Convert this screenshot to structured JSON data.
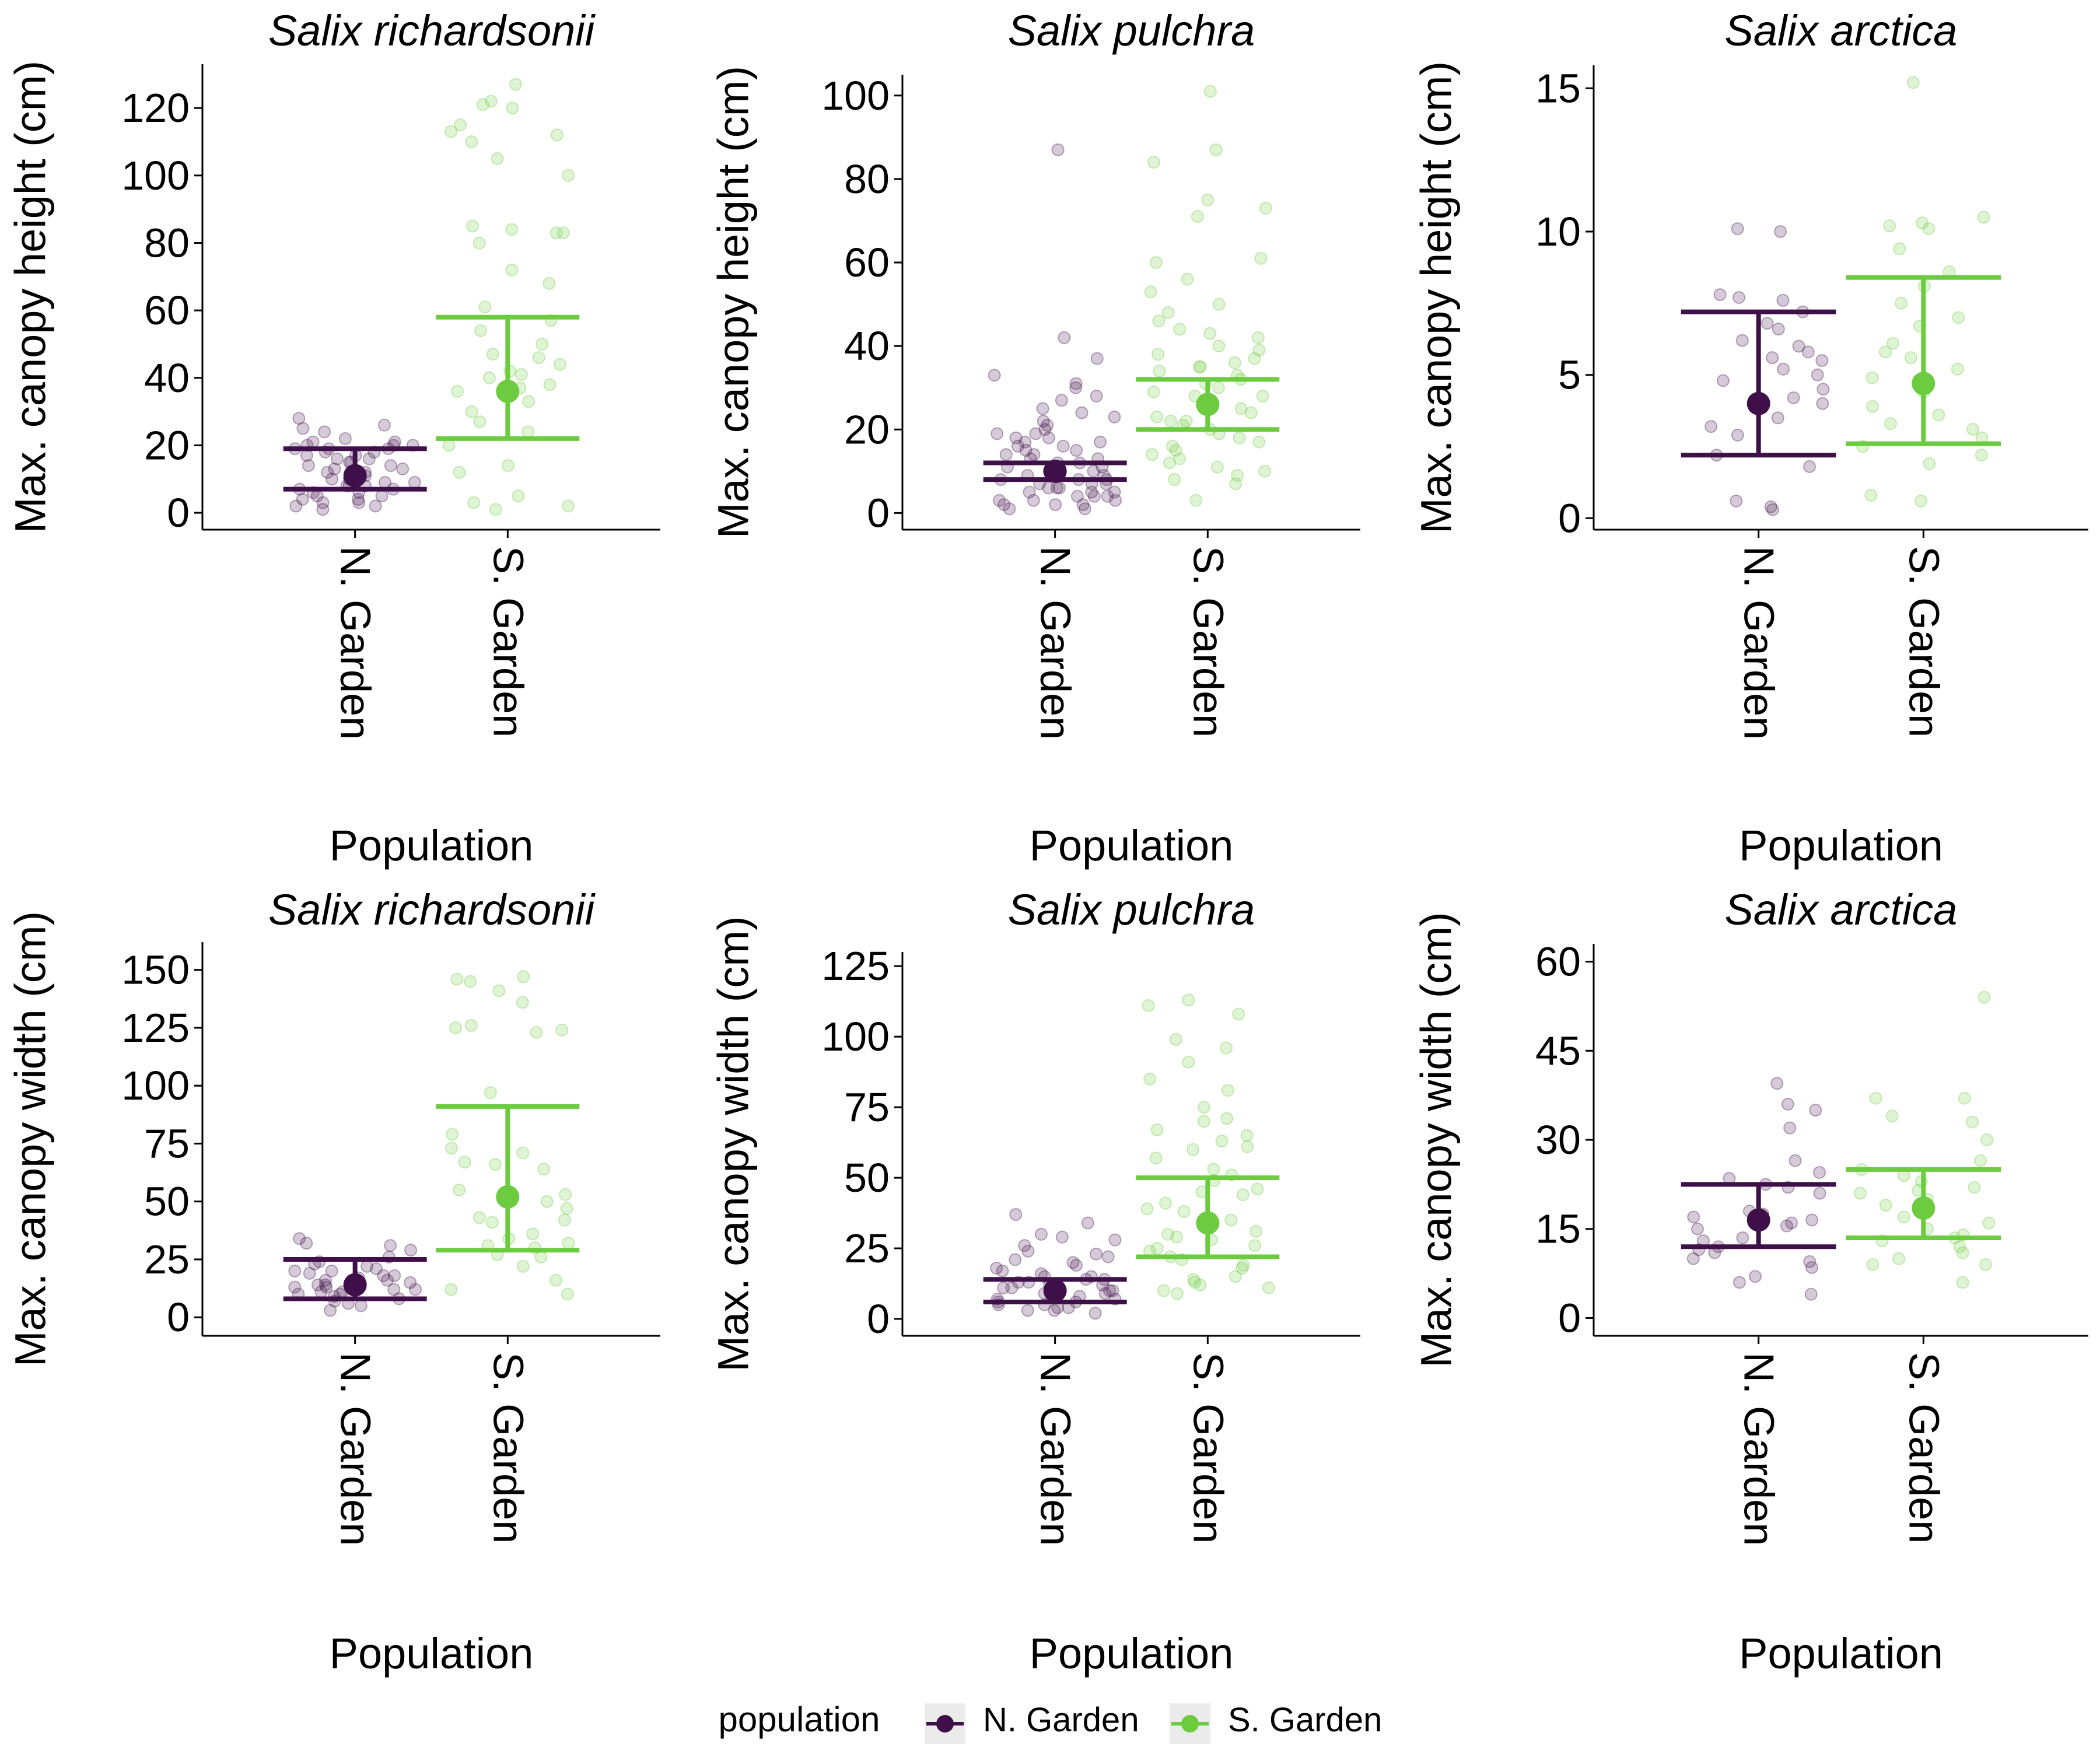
{
  "chart_data": [
    {
      "type": "scatter",
      "title": "Salix richardsonii",
      "xlabel": "Population",
      "ylabel": "Max. canopy height (cm)",
      "categories": [
        "N. Garden",
        "S. Garden"
      ],
      "ylim": [
        -5,
        133
      ],
      "yticks": [
        0,
        20,
        40,
        60,
        80,
        100,
        120
      ],
      "summary": [
        {
          "category": "N. Garden",
          "mean": 11,
          "lower": 7,
          "upper": 19
        },
        {
          "category": "S. Garden",
          "mean": 36,
          "lower": 22,
          "upper": 58
        }
      ],
      "points": [
        {
          "category": "N. Garden",
          "values": [
            26,
            25,
            22,
            21,
            21,
            20,
            20,
            20,
            19,
            19,
            19,
            18,
            18,
            17,
            17,
            16,
            16,
            15,
            15,
            14,
            14,
            13,
            13,
            12,
            12,
            12,
            11,
            11,
            10,
            10,
            9,
            9,
            8,
            8,
            8,
            7,
            7,
            6,
            6,
            5,
            5,
            4,
            4,
            3,
            3,
            2,
            2,
            1,
            28,
            24
          ]
        },
        {
          "category": "S. Garden",
          "values": [
            127,
            122,
            121,
            120,
            115,
            113,
            112,
            110,
            105,
            100,
            85,
            84,
            83,
            83,
            80,
            72,
            68,
            61,
            57,
            54,
            50,
            47,
            46,
            44,
            42,
            41,
            40,
            38,
            37,
            36,
            33,
            30,
            27,
            24,
            20,
            14,
            12,
            5,
            3,
            2,
            1
          ]
        }
      ]
    },
    {
      "type": "scatter",
      "title": "Salix pulchra",
      "xlabel": "Population",
      "ylabel": "Max. canopy height (cm)",
      "categories": [
        "N. Garden",
        "S. Garden"
      ],
      "ylim": [
        -4,
        105
      ],
      "yticks": [
        0,
        20,
        40,
        60,
        80,
        100
      ],
      "summary": [
        {
          "category": "N. Garden",
          "mean": 10,
          "lower": 8,
          "upper": 12
        },
        {
          "category": "S. Garden",
          "mean": 26,
          "lower": 20,
          "upper": 32
        }
      ],
      "points": [
        {
          "category": "N. Garden",
          "values": [
            87,
            42,
            37,
            33,
            31,
            30,
            28,
            27,
            25,
            24,
            23,
            22,
            21,
            20,
            19,
            19,
            18,
            18,
            17,
            17,
            16,
            16,
            15,
            15,
            14,
            14,
            13,
            13,
            12,
            12,
            11,
            11,
            10,
            10,
            9,
            9,
            9,
            8,
            8,
            8,
            7,
            7,
            7,
            6,
            6,
            6,
            5,
            5,
            5,
            4,
            4,
            4,
            3,
            3,
            3,
            2,
            2,
            2,
            1,
            1
          ]
        },
        {
          "category": "S. Garden",
          "values": [
            101,
            87,
            84,
            75,
            73,
            71,
            61,
            60,
            56,
            53,
            50,
            48,
            46,
            44,
            43,
            42,
            40,
            39,
            38,
            37,
            36,
            35,
            35,
            34,
            33,
            32,
            31,
            30,
            29,
            28,
            28,
            27,
            26,
            25,
            24,
            23,
            22,
            22,
            21,
            20,
            19,
            18,
            17,
            16,
            15,
            14,
            13,
            12,
            11,
            10,
            9,
            8,
            7,
            3
          ]
        }
      ]
    },
    {
      "type": "scatter",
      "title": "Salix arctica",
      "xlabel": "Population",
      "ylabel": "Max. canopy height (cm)",
      "categories": [
        "N. Garden",
        "S. Garden"
      ],
      "ylim": [
        -0.4,
        15.8
      ],
      "yticks": [
        0,
        5,
        10,
        15
      ],
      "summary": [
        {
          "category": "N. Garden",
          "mean": 4,
          "lower": 2.2,
          "upper": 7.2
        },
        {
          "category": "S. Garden",
          "mean": 4.7,
          "lower": 2.6,
          "upper": 8.4
        }
      ],
      "points": [
        {
          "category": "N. Garden",
          "values": [
            10.1,
            10,
            7.8,
            7.7,
            7.6,
            7.2,
            6.8,
            6.6,
            6.2,
            6,
            5.8,
            5.6,
            5.5,
            5.2,
            5,
            4.8,
            4.5,
            4.2,
            4,
            3.5,
            3.2,
            2.9,
            2.2,
            1.8,
            0.6,
            0.4,
            0.3
          ]
        },
        {
          "category": "S. Garden",
          "values": [
            15.2,
            10.5,
            10.3,
            10.2,
            10.1,
            9.4,
            8.6,
            8.1,
            7.5,
            7,
            6.7,
            6.1,
            5.8,
            5.6,
            5.2,
            4.9,
            4.4,
            3.9,
            3.6,
            3.3,
            3.1,
            2.8,
            2.5,
            2.2,
            1.9,
            0.8,
            0.6
          ]
        }
      ]
    },
    {
      "type": "scatter",
      "title": "Salix richardsonii",
      "xlabel": "Population",
      "ylabel": "Max. canopy width (cm)",
      "categories": [
        "N. Garden",
        "S. Garden"
      ],
      "ylim": [
        -8,
        162
      ],
      "yticks": [
        0,
        25,
        50,
        75,
        100,
        125,
        150
      ],
      "summary": [
        {
          "category": "N. Garden",
          "mean": 14,
          "lower": 8,
          "upper": 25
        },
        {
          "category": "S. Garden",
          "mean": 52,
          "lower": 29,
          "upper": 91
        }
      ],
      "points": [
        {
          "category": "N. Garden",
          "values": [
            34,
            32,
            31,
            29,
            26,
            24,
            23,
            22,
            21,
            20,
            20,
            19,
            18,
            18,
            17,
            16,
            16,
            15,
            15,
            14,
            14,
            13,
            13,
            12,
            12,
            11,
            11,
            10,
            10,
            9,
            8,
            7,
            6,
            5,
            3
          ]
        },
        {
          "category": "S. Garden",
          "values": [
            147,
            146,
            145,
            141,
            136,
            126,
            125,
            124,
            123,
            97,
            79,
            73,
            71,
            67,
            66,
            64,
            55,
            53,
            50,
            47,
            43,
            42,
            41,
            36,
            34,
            32,
            31,
            30,
            27,
            26,
            22,
            16,
            12,
            10
          ]
        }
      ]
    },
    {
      "type": "scatter",
      "title": "Salix pulchra",
      "xlabel": "Population",
      "ylabel": "Max. canopy width (cm)",
      "categories": [
        "N. Garden",
        "S. Garden"
      ],
      "ylim": [
        -6,
        130
      ],
      "yticks": [
        0,
        25,
        50,
        75,
        100,
        125
      ],
      "summary": [
        {
          "category": "N. Garden",
          "mean": 10,
          "lower": 6,
          "upper": 14
        },
        {
          "category": "S. Garden",
          "mean": 34,
          "lower": 22,
          "upper": 50
        }
      ],
      "points": [
        {
          "category": "N. Garden",
          "values": [
            37,
            34,
            30,
            29,
            28,
            26,
            24,
            23,
            22,
            21,
            20,
            19,
            18,
            17,
            16,
            15,
            15,
            14,
            14,
            13,
            13,
            12,
            12,
            11,
            11,
            10,
            10,
            9,
            9,
            8,
            8,
            7,
            7,
            6,
            6,
            5,
            5,
            4,
            4,
            3,
            3,
            2
          ]
        },
        {
          "category": "S. Garden",
          "values": [
            113,
            111,
            108,
            99,
            96,
            91,
            85,
            81,
            75,
            71,
            70,
            67,
            65,
            63,
            61,
            60,
            57,
            53,
            51,
            49,
            46,
            45,
            44,
            41,
            39,
            38,
            35,
            33,
            31,
            30,
            29,
            28,
            26,
            25,
            24,
            22,
            21,
            19,
            18,
            15,
            14,
            13,
            12,
            11,
            10,
            9
          ]
        }
      ]
    },
    {
      "type": "scatter",
      "title": "Salix arctica",
      "xlabel": "Population",
      "ylabel": "Max. canopy width (cm)",
      "categories": [
        "N. Garden",
        "S. Garden"
      ],
      "ylim": [
        -3,
        63
      ],
      "yticks": [
        0,
        15,
        30,
        45,
        60
      ],
      "summary": [
        {
          "category": "N. Garden",
          "mean": 16.5,
          "lower": 12,
          "upper": 22.5
        },
        {
          "category": "S. Garden",
          "mean": 18.5,
          "lower": 13.5,
          "upper": 25
        }
      ],
      "points": [
        {
          "category": "N. Garden",
          "values": [
            39.5,
            36,
            35,
            32,
            26.5,
            24.5,
            23.5,
            22.5,
            22,
            21,
            18,
            17.5,
            17,
            16.5,
            16,
            15.5,
            15,
            13.5,
            13,
            12,
            11.5,
            11,
            10,
            9.5,
            8.5,
            7,
            6,
            4
          ]
        },
        {
          "category": "S. Garden",
          "values": [
            54,
            37,
            37,
            34,
            33,
            30,
            26.5,
            25,
            24,
            23,
            22,
            21.5,
            21,
            20,
            19,
            17,
            16,
            15,
            14,
            13.5,
            13,
            12,
            11,
            10,
            9,
            9,
            6
          ]
        }
      ]
    }
  ],
  "legend": {
    "title": "population",
    "position": "bottom",
    "items": [
      {
        "label": "N. Garden",
        "color": "#440154"
      },
      {
        "label": "S. Garden",
        "color": "#7AD151"
      }
    ]
  },
  "colors": {
    "N. Garden": "#3F0F49",
    "S. Garden": "#6CCB3F"
  }
}
